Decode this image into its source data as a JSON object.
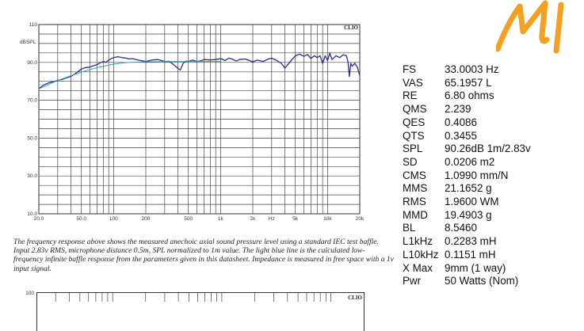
{
  "chart_data": {
    "type": "line",
    "xscale": "log",
    "xlim": [
      20,
      20000
    ],
    "ylim": [
      10,
      110
    ],
    "ylabel": "dBSPL",
    "brand_label": "CLIO",
    "grid": true,
    "yticks": [
      {
        "value": 10,
        "label": "10.0"
      },
      {
        "value": 30,
        "label": "30.0"
      },
      {
        "value": 50,
        "label": "50.0"
      },
      {
        "value": 70,
        "label": "70.0"
      },
      {
        "value": 90,
        "label": "90.0"
      },
      {
        "value": 110,
        "label": "110"
      }
    ],
    "xticks": [
      {
        "value": 20,
        "label": "20.0"
      },
      {
        "value": 50,
        "label": "50.0"
      },
      {
        "value": 100,
        "label": "100"
      },
      {
        "value": 200,
        "label": "200"
      },
      {
        "value": 500,
        "label": "500"
      },
      {
        "value": 1000,
        "label": "1k"
      },
      {
        "value": 2000,
        "label": "2k"
      },
      {
        "value": 3000,
        "label": "Hz"
      },
      {
        "value": 5000,
        "label": "5k"
      },
      {
        "value": 10000,
        "label": "10k"
      },
      {
        "value": 20000,
        "label": "20k"
      }
    ],
    "series": [
      {
        "color": "#2a2f8f",
        "x": [
          20,
          22,
          25,
          28,
          30,
          33,
          36,
          40,
          45,
          50,
          55,
          60,
          65,
          70,
          75,
          80,
          85,
          90,
          95,
          100,
          110,
          120,
          130,
          140,
          150,
          170,
          200,
          230,
          260,
          300,
          330,
          360,
          400,
          420,
          450,
          480,
          500,
          550,
          600,
          650,
          700,
          800,
          900,
          1000,
          1100,
          1200,
          1300,
          1400,
          1500,
          1700,
          2000,
          2200,
          2500,
          2800,
          3000,
          3300,
          3700,
          4000,
          4500,
          5000,
          5500,
          6000,
          6500,
          7000,
          7500,
          8000,
          8500,
          9000,
          9500,
          10000,
          10500,
          11000,
          12000,
          13000,
          14000,
          15000,
          15500,
          16000,
          16500,
          17000,
          18000,
          19000,
          20000
        ],
        "values": [
          76.0,
          78.0,
          79.3,
          79.9,
          80.5,
          81.0,
          81.8,
          82.6,
          84.5,
          86.5,
          87.3,
          87.5,
          88.3,
          88.8,
          89.8,
          90.5,
          90.0,
          91.2,
          92.0,
          92.5,
          93.0,
          92.5,
          92.3,
          91.8,
          92.0,
          91.2,
          90.5,
          91.3,
          91.5,
          90.5,
          90.6,
          89.0,
          86.8,
          86.0,
          89.8,
          90.7,
          90.5,
          91.2,
          90.5,
          90.8,
          91.5,
          91.3,
          91.5,
          92.0,
          91.0,
          92.3,
          91.6,
          90.7,
          91.5,
          91.8,
          90.3,
          91.2,
          90.5,
          91.8,
          92.2,
          91.2,
          89.5,
          87.0,
          90.5,
          93.5,
          94.4,
          93.2,
          94.2,
          92.0,
          93.5,
          92.5,
          93.5,
          89.5,
          93.5,
          91.0,
          95.0,
          91.5,
          93.5,
          92.5,
          94.0,
          93.5,
          90.5,
          82.5,
          89.5,
          88.0,
          89.5,
          87.5,
          83.0
        ]
      },
      {
        "color": "#3aa0a8",
        "x": [
          20,
          25,
          30,
          40,
          50,
          60,
          70,
          80,
          100,
          120,
          150,
          200,
          300,
          500,
          1000
        ],
        "values": [
          76.0,
          78.5,
          80.4,
          83.0,
          84.8,
          86.2,
          87.2,
          88.0,
          89.1,
          89.7,
          90.1,
          90.35,
          90.45,
          90.5,
          90.5
        ]
      }
    ]
  },
  "mini_chart": {
    "y_label": "100",
    "brand_label": "CLIO"
  },
  "caption": "The frequency response above shows the measured anechoic axial sound pressure level using a standard IEC test baffle. Input 2.83v RMS, microphone distance 0.5m, SPL normalized to 1m value. The light blue line is the calculated low-frequency infinite baffle response from the parameters given in this datasheet. Impedance is measured in free space with a 1v input signal.",
  "parameters": [
    {
      "name": "FS",
      "value": "33.0003 Hz"
    },
    {
      "name": "VAS",
      "value": "65.1957 L"
    },
    {
      "name": "RE",
      "value": "6.80 ohms"
    },
    {
      "name": "QMS",
      "value": "2.239"
    },
    {
      "name": "QES",
      "value": "0.4086"
    },
    {
      "name": "QTS",
      "value": "0.3455"
    },
    {
      "name": "SPL",
      "value": "90.26dB 1m/2.83v"
    },
    {
      "name": "SD",
      "value": "0.0206 m2"
    },
    {
      "name": "CMS",
      "value": "1.0990 mm/N"
    },
    {
      "name": "MMS",
      "value": "21.1652 g"
    },
    {
      "name": "RMS",
      "value": "1.9600 WM"
    },
    {
      "name": "MMD",
      "value": "19.4903 g"
    },
    {
      "name": "BL",
      "value": "8.5460"
    },
    {
      "name": "L1kHz",
      "value": "0.2283 mH"
    },
    {
      "name": "L10kHz",
      "value": "0.1151 mH"
    },
    {
      "name": "X Max",
      "value": "9mm (1 way)"
    },
    {
      "name": "Pwr",
      "value": "50 Watts (Nom)"
    }
  ],
  "logo": {
    "color": "#f5a020"
  }
}
